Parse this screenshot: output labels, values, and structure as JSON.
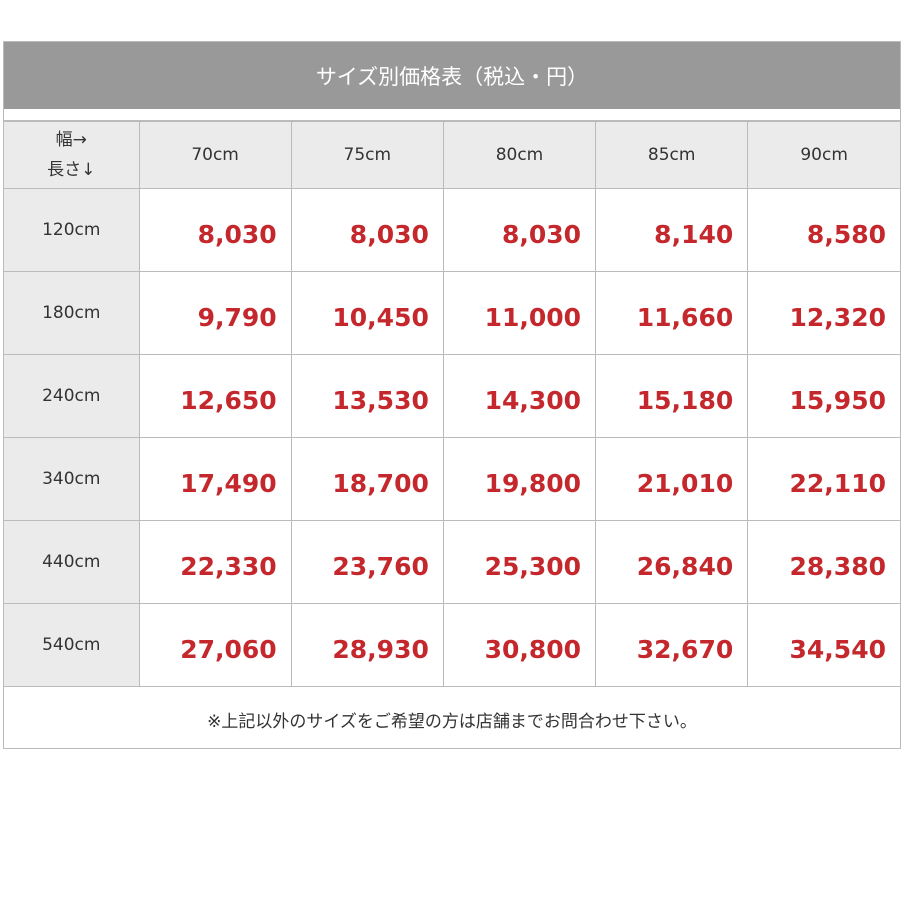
{
  "title": "サイズ別価格表（税込・円）",
  "corner": {
    "width": "幅→",
    "length": "長さ↓"
  },
  "columns": [
    "70cm",
    "75cm",
    "80cm",
    "85cm",
    "90cm"
  ],
  "rows": [
    {
      "label": "120cm",
      "values": [
        "8,030",
        "8,030",
        "8,030",
        "8,140",
        "8,580"
      ]
    },
    {
      "label": "180cm",
      "values": [
        "9,790",
        "10,450",
        "11,000",
        "11,660",
        "12,320"
      ]
    },
    {
      "label": "240cm",
      "values": [
        "12,650",
        "13,530",
        "14,300",
        "15,180",
        "15,950"
      ]
    },
    {
      "label": "340cm",
      "values": [
        "17,490",
        "18,700",
        "19,800",
        "21,010",
        "22,110"
      ]
    },
    {
      "label": "440cm",
      "values": [
        "22,330",
        "23,760",
        "25,300",
        "26,840",
        "28,380"
      ]
    },
    {
      "label": "540cm",
      "values": [
        "27,060",
        "28,930",
        "30,800",
        "32,670",
        "34,540"
      ]
    }
  ],
  "note": "※上記以外のサイズをご希望の方は店舗までお問合わせ下さい。",
  "colors": {
    "header": "#999999",
    "price": "#c4282d",
    "label_bg": "#ebebeb"
  }
}
